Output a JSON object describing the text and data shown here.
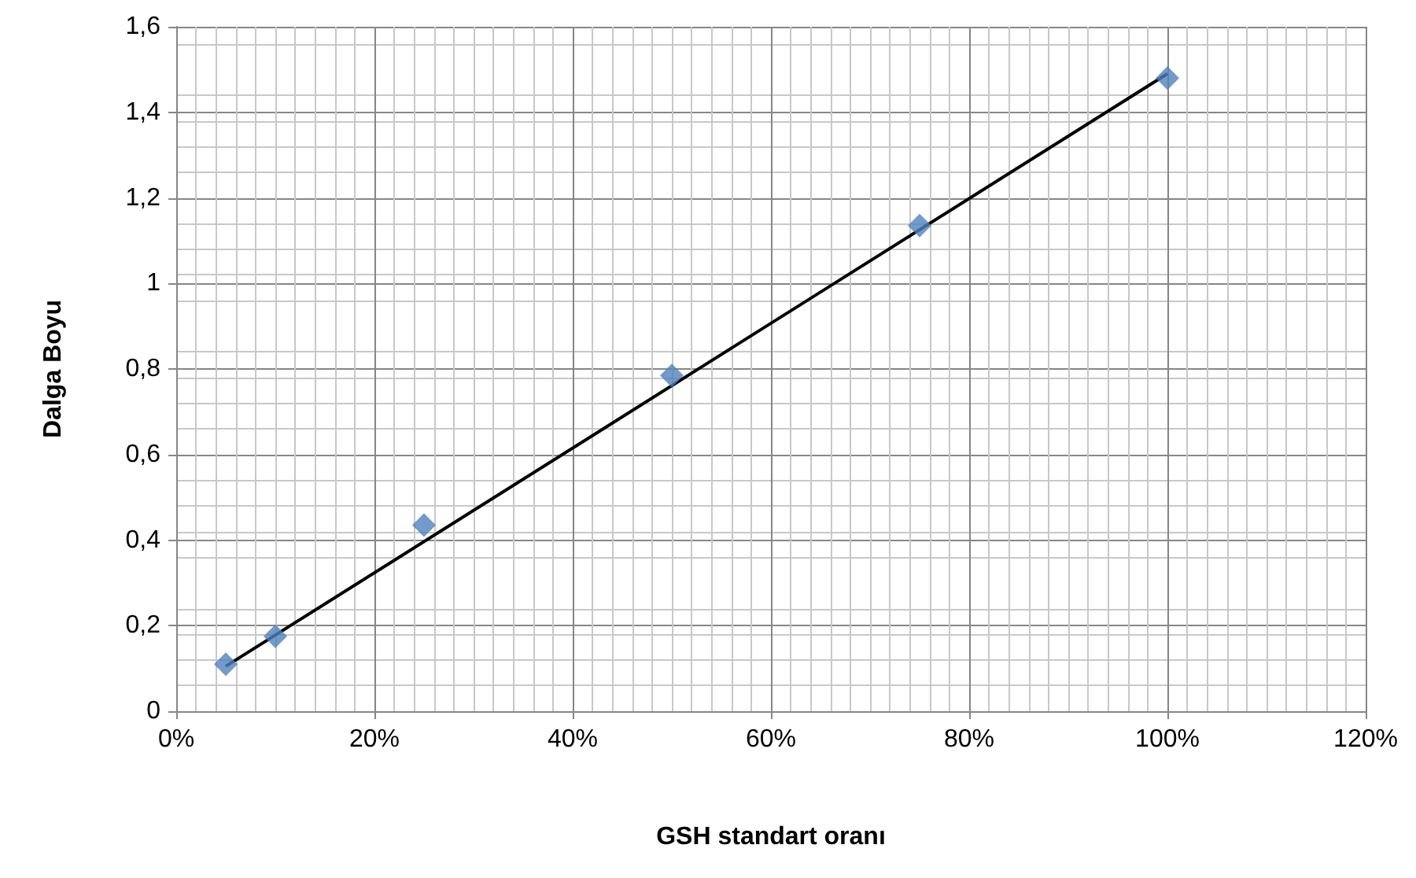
{
  "chart_data": {
    "type": "scatter",
    "xlabel": "GSH standart oranı",
    "ylabel": "Dalga Boyu",
    "series": [
      {
        "color": "#4f81bd",
        "marker": "diamond",
        "x": [
          5,
          10,
          25,
          50,
          75,
          100
        ],
        "values": [
          0.11,
          0.175,
          0.435,
          0.785,
          1.135,
          1.48
        ]
      },
      {
        "type": "line",
        "color": "#000000",
        "marker": "none",
        "x": [
          5,
          100
        ],
        "values": [
          0.105,
          1.49
        ]
      }
    ],
    "xlim": [
      0,
      120
    ],
    "xticks": [
      {
        "value": 0,
        "label": "0%"
      },
      {
        "value": 20,
        "label": "20%"
      },
      {
        "value": 40,
        "label": "40%"
      },
      {
        "value": 60,
        "label": "60%"
      },
      {
        "value": 80,
        "label": "80%"
      },
      {
        "value": 100,
        "label": "100%"
      },
      {
        "value": 120,
        "label": "120%"
      }
    ],
    "ylim": [
      0,
      1.6
    ],
    "yticks": [
      0,
      {
        "value": 0.2,
        "label": "0,2"
      },
      {
        "value": 0.4,
        "label": "0,4"
      },
      {
        "value": 0.6,
        "label": "0,6"
      },
      {
        "value": 0.8,
        "label": "0,8"
      },
      1,
      {
        "value": 1.2,
        "label": "1,2"
      },
      {
        "value": 1.4,
        "label": "1,4"
      },
      {
        "value": 1.6,
        "label": "1,6"
      }
    ],
    "grid": true
  }
}
